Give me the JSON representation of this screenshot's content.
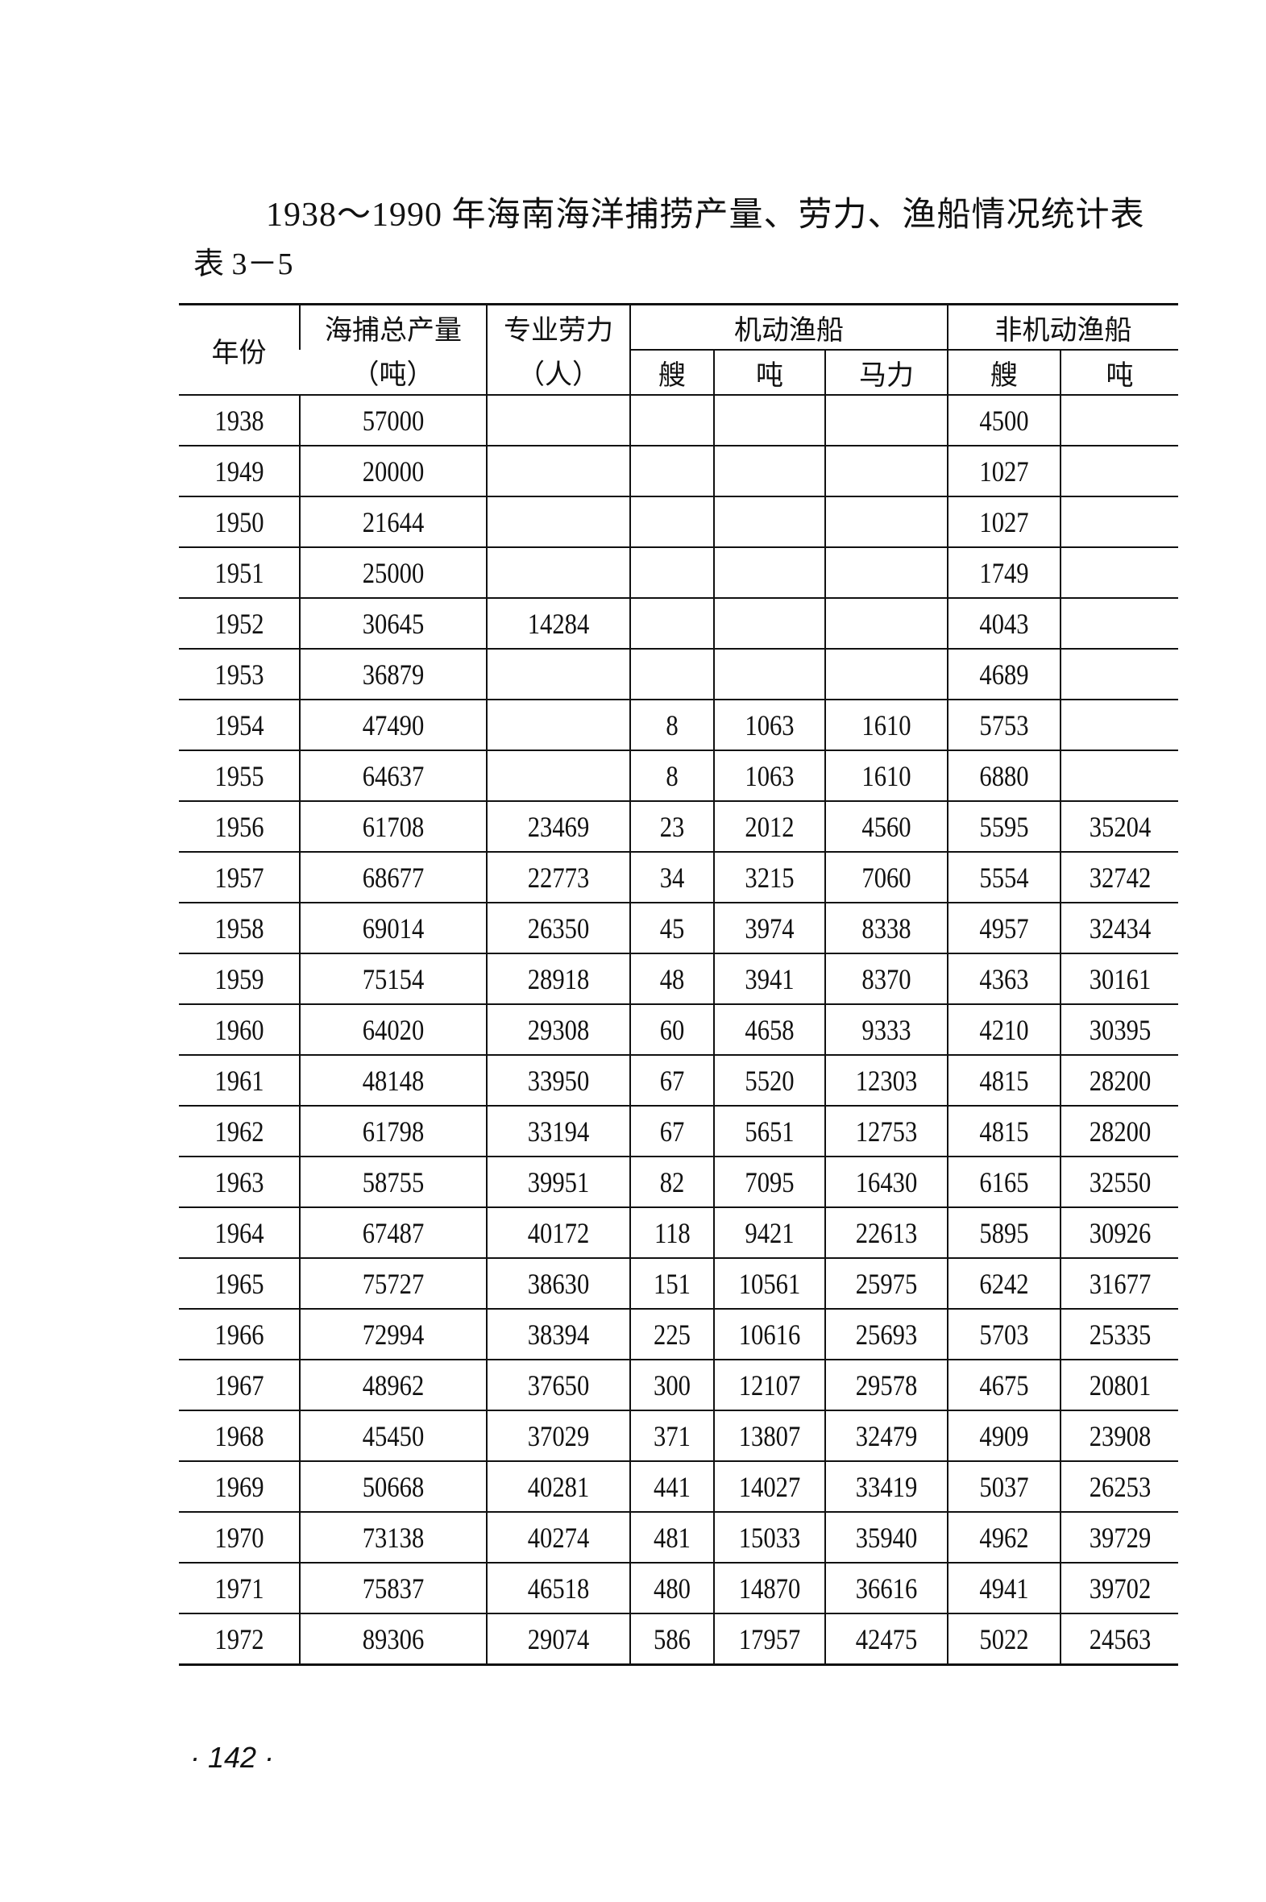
{
  "title": "1938～1990 年海南海洋捕捞产量、劳力、渔船情况统计表",
  "table_number": "表 3－5",
  "header": {
    "year": "年份",
    "catch": "海捕总产量",
    "catch_unit": "（吨）",
    "labor": "专业劳力",
    "labor_unit": "（人）",
    "motor": "机动渔船",
    "nonmotor": "非机动渔船",
    "motor_sub": [
      "艘",
      "吨",
      "马力"
    ],
    "nonmotor_sub": [
      "艘",
      "吨"
    ]
  },
  "rows": [
    [
      "1938",
      "57000",
      "",
      "",
      "",
      "",
      "4500",
      ""
    ],
    [
      "1949",
      "20000",
      "",
      "",
      "",
      "",
      "1027",
      ""
    ],
    [
      "1950",
      "21644",
      "",
      "",
      "",
      "",
      "1027",
      ""
    ],
    [
      "1951",
      "25000",
      "",
      "",
      "",
      "",
      "1749",
      ""
    ],
    [
      "1952",
      "30645",
      "14284",
      "",
      "",
      "",
      "4043",
      ""
    ],
    [
      "1953",
      "36879",
      "",
      "",
      "",
      "",
      "4689",
      ""
    ],
    [
      "1954",
      "47490",
      "",
      "8",
      "1063",
      "1610",
      "5753",
      ""
    ],
    [
      "1955",
      "64637",
      "",
      "8",
      "1063",
      "1610",
      "6880",
      ""
    ],
    [
      "1956",
      "61708",
      "23469",
      "23",
      "2012",
      "4560",
      "5595",
      "35204"
    ],
    [
      "1957",
      "68677",
      "22773",
      "34",
      "3215",
      "7060",
      "5554",
      "32742"
    ],
    [
      "1958",
      "69014",
      "26350",
      "45",
      "3974",
      "8338",
      "4957",
      "32434"
    ],
    [
      "1959",
      "75154",
      "28918",
      "48",
      "3941",
      "8370",
      "4363",
      "30161"
    ],
    [
      "1960",
      "64020",
      "29308",
      "60",
      "4658",
      "9333",
      "4210",
      "30395"
    ],
    [
      "1961",
      "48148",
      "33950",
      "67",
      "5520",
      "12303",
      "4815",
      "28200"
    ],
    [
      "1962",
      "61798",
      "33194",
      "67",
      "5651",
      "12753",
      "4815",
      "28200"
    ],
    [
      "1963",
      "58755",
      "39951",
      "82",
      "7095",
      "16430",
      "6165",
      "32550"
    ],
    [
      "1964",
      "67487",
      "40172",
      "118",
      "9421",
      "22613",
      "5895",
      "30926"
    ],
    [
      "1965",
      "75727",
      "38630",
      "151",
      "10561",
      "25975",
      "6242",
      "31677"
    ],
    [
      "1966",
      "72994",
      "38394",
      "225",
      "10616",
      "25693",
      "5703",
      "25335"
    ],
    [
      "1967",
      "48962",
      "37650",
      "300",
      "12107",
      "29578",
      "4675",
      "20801"
    ],
    [
      "1968",
      "45450",
      "37029",
      "371",
      "13807",
      "32479",
      "4909",
      "23908"
    ],
    [
      "1969",
      "50668",
      "40281",
      "441",
      "14027",
      "33419",
      "5037",
      "26253"
    ],
    [
      "1970",
      "73138",
      "40274",
      "481",
      "15033",
      "35940",
      "4962",
      "39729"
    ],
    [
      "1971",
      "75837",
      "46518",
      "480",
      "14870",
      "36616",
      "4941",
      "39702"
    ],
    [
      "1972",
      "89306",
      "29074",
      "586",
      "17957",
      "42475",
      "5022",
      "24563"
    ]
  ],
  "page_number": "· 142 ·"
}
